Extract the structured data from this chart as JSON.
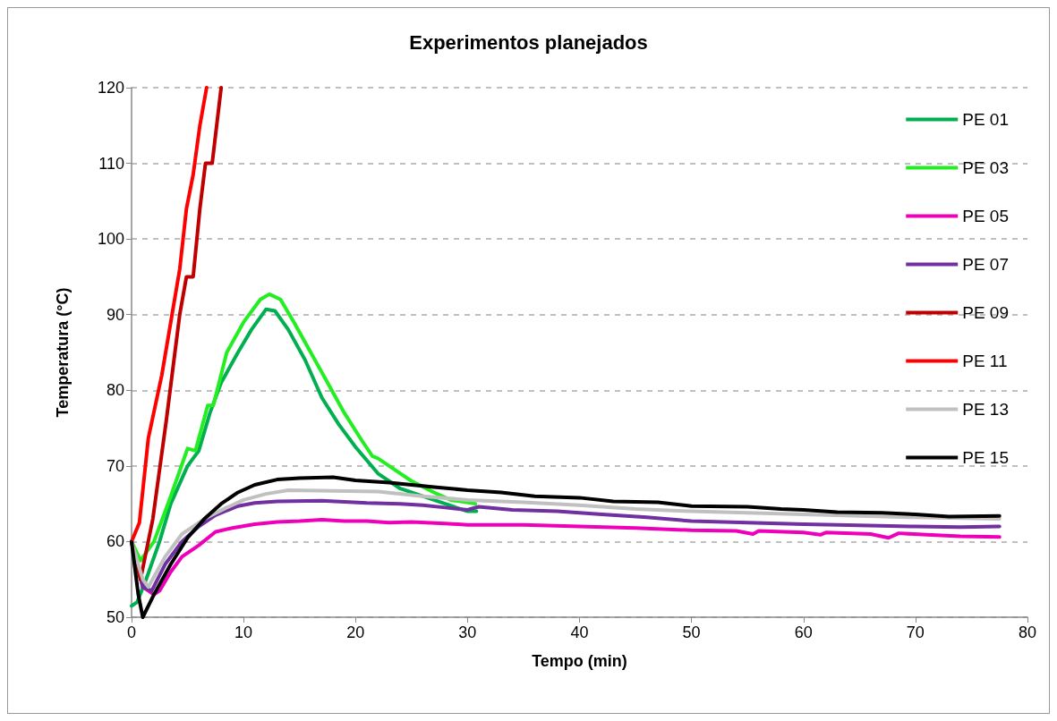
{
  "chart_data": {
    "type": "line",
    "title": "Experimentos planejados",
    "xlabel": "Tempo (min)",
    "ylabel": "Temperatura (°C)",
    "xlim": [
      0,
      80
    ],
    "xticks": [
      0,
      10,
      20,
      30,
      40,
      50,
      60,
      70,
      80
    ],
    "ylim": [
      50,
      120
    ],
    "yticks": [
      50,
      60,
      70,
      80,
      90,
      100,
      110,
      120
    ],
    "grid": "y",
    "legend": "top right",
    "marker": "none",
    "line_style": "solid",
    "series": [
      {
        "name": "PE 01",
        "color": "#00b050",
        "x": [
          0,
          0.5,
          1.3,
          2.5,
          3.5,
          5,
          6,
          7,
          8,
          9.5,
          10.7,
          12,
          12.8,
          14,
          15.5,
          17,
          18.5,
          20,
          22,
          24,
          26,
          28,
          30,
          30.8
        ],
        "values": [
          51.5,
          52,
          55,
          60,
          65,
          70,
          72,
          77,
          81,
          85,
          88,
          90.7,
          90.5,
          88,
          84,
          79,
          75.5,
          72.5,
          69,
          67,
          66,
          65,
          64,
          64
        ]
      },
      {
        "name": "PE 03",
        "color": "#22ee22",
        "x": [
          0,
          0.8,
          2,
          3.5,
          5,
          5.7,
          6.8,
          7.3,
          8.5,
          10,
          11.5,
          12.3,
          13.3,
          14.5,
          16,
          17.5,
          19,
          20.5,
          21.5,
          22,
          23.5,
          25,
          27,
          28.5,
          30.7
        ],
        "values": [
          60,
          57.5,
          60,
          66,
          72.3,
          72,
          78,
          78,
          85,
          89,
          92,
          92.7,
          92,
          89,
          85,
          81,
          77,
          73.5,
          71.3,
          71,
          69.5,
          68,
          66.5,
          65.5,
          65
        ]
      },
      {
        "name": "PE 05",
        "color": "#ee00bb",
        "x": [
          0,
          1,
          2,
          2.5,
          3.5,
          4.5,
          6,
          7.5,
          9,
          11,
          13,
          15,
          17,
          19,
          21,
          23,
          25,
          28,
          30,
          35,
          40,
          45,
          50,
          54,
          55.5,
          56,
          60,
          61.5,
          62,
          66,
          67.6,
          68.5,
          71,
          74,
          77.5
        ],
        "values": [
          60,
          54,
          53,
          53.5,
          56,
          58,
          59.5,
          61.3,
          61.8,
          62.3,
          62.6,
          62.7,
          62.9,
          62.7,
          62.7,
          62.5,
          62.6,
          62.4,
          62.2,
          62.2,
          62,
          61.8,
          61.5,
          61.4,
          61,
          61.4,
          61.2,
          60.9,
          61.2,
          61,
          60.5,
          61.1,
          60.9,
          60.7,
          60.6
        ]
      },
      {
        "name": "PE 07",
        "color": "#7030a0",
        "x": [
          0,
          1,
          1.8,
          3,
          4.5,
          6,
          7.5,
          9.5,
          11,
          13,
          17,
          21,
          24,
          26,
          28,
          30,
          31,
          34,
          38,
          42,
          46,
          50,
          55,
          60,
          63,
          70,
          74,
          77.5
        ],
        "values": [
          60,
          54,
          53.5,
          57,
          60,
          62,
          63.5,
          64.7,
          65.1,
          65.3,
          65.4,
          65.1,
          65,
          64.8,
          64.5,
          64.2,
          64.6,
          64.2,
          64,
          63.6,
          63.2,
          62.7,
          62.5,
          62.3,
          62.2,
          62,
          61.9,
          62
        ]
      },
      {
        "name": "PE 09",
        "color": "#c00000",
        "x": [
          0,
          0.8,
          1.9,
          3.1,
          4.3,
          4.9,
          5.5,
          6.1,
          6.6,
          7.2,
          7.6,
          8
        ],
        "values": [
          60,
          55,
          63,
          76,
          90,
          95,
          95,
          104,
          110,
          110,
          115,
          120
        ]
      },
      {
        "name": "PE 11",
        "color": "#ff0000",
        "x": [
          0,
          0.7,
          1.5,
          2.7,
          3.5,
          4.3,
          4.9,
          5.5,
          6.1,
          6.7
        ],
        "values": [
          60,
          62.5,
          73.7,
          82,
          89,
          96,
          104,
          108.5,
          115,
          120
        ]
      },
      {
        "name": "PE 13",
        "color": "#c0c0c0",
        "x": [
          0,
          1,
          1.5,
          3,
          4.5,
          6.5,
          8.5,
          10,
          12,
          14,
          18,
          22,
          26,
          30,
          35,
          40,
          45,
          50,
          55,
          60,
          65,
          70,
          77.5
        ],
        "values": [
          60,
          55,
          54,
          58,
          61,
          63,
          64.5,
          65.5,
          66.3,
          66.8,
          66.7,
          66.6,
          66,
          65.5,
          65.2,
          64.8,
          64.3,
          64,
          63.8,
          63.6,
          63.4,
          63.2,
          63
        ]
      },
      {
        "name": "PE 15",
        "color": "#000000",
        "x": [
          0,
          0.6,
          1,
          2,
          3.5,
          5,
          6.5,
          8,
          9.5,
          11,
          13,
          15,
          18,
          20,
          23,
          25,
          27,
          30,
          33,
          36,
          40,
          43,
          47,
          50,
          55,
          58,
          60,
          63,
          67,
          70,
          73,
          77.5
        ],
        "values": [
          60,
          53,
          50,
          53,
          57,
          60.5,
          63,
          65,
          66.5,
          67.5,
          68.2,
          68.4,
          68.5,
          68.1,
          67.8,
          67.5,
          67.2,
          66.8,
          66.5,
          66,
          65.8,
          65.3,
          65.2,
          64.7,
          64.6,
          64.3,
          64.2,
          63.9,
          63.8,
          63.6,
          63.3,
          63.4
        ]
      }
    ]
  }
}
